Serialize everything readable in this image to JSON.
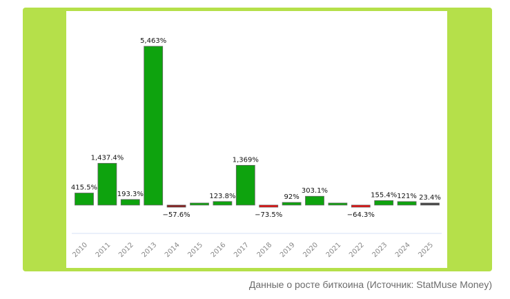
{
  "caption": "Данные о росте биткоина (Источник: StatMuse Money)",
  "colors": {
    "frame": "#b5e04a",
    "positive": "#0ea30e",
    "negative": "#e80c0c",
    "negative_dark": "#8b1c1c",
    "neutral": "#444444",
    "axis": "#d6e0f5"
  },
  "chart_data": {
    "type": "bar",
    "title": "",
    "xlabel": "",
    "ylabel": "",
    "categories": [
      "2010",
      "2011",
      "2012",
      "2013",
      "2014",
      "2015",
      "2016",
      "2017",
      "2018",
      "2019",
      "2020",
      "2021",
      "2022",
      "2023",
      "2024",
      "2025"
    ],
    "values": [
      415.5,
      1437.4,
      193.3,
      5463,
      -57.6,
      35,
      123.8,
      1369,
      -73.5,
      92,
      303.1,
      60,
      -64.3,
      155.4,
      121,
      23.4
    ],
    "labels": [
      "415.5%",
      "1,437.4%",
      "193.3%",
      "5,463%",
      "−57.6%",
      null,
      "123.8%",
      "1,369%",
      "−73.5%",
      "92%",
      "303.1%",
      null,
      "−64.3%",
      "155.4%",
      "121%",
      "23.4%"
    ],
    "bar_colors": [
      "positive",
      "positive",
      "positive",
      "positive",
      "negative_dark",
      "positive",
      "positive",
      "positive",
      "negative",
      "positive",
      "positive",
      "positive",
      "negative",
      "positive",
      "positive",
      "neutral"
    ],
    "ylim": [
      -100,
      5463
    ],
    "grid": false
  }
}
